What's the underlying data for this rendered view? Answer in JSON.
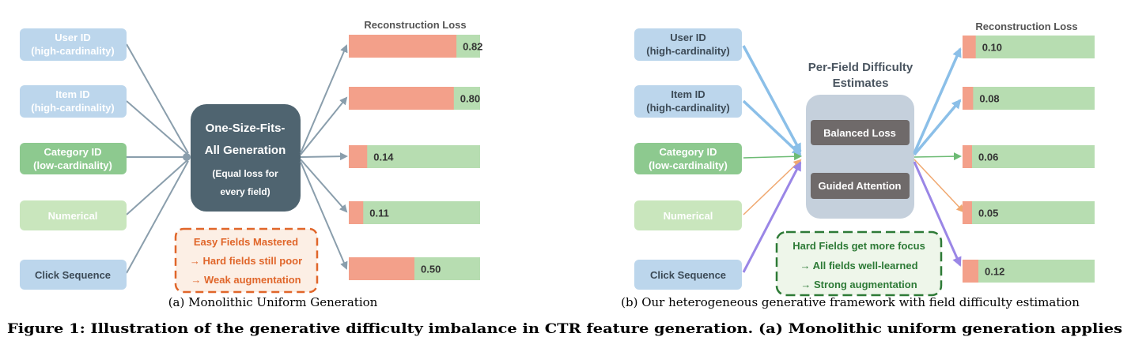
{
  "panel_a": {
    "inputs": [
      {
        "line1": "User ID",
        "line2": "(high-cardinality)"
      },
      {
        "line1": "Item ID",
        "line2": "(high-cardinality)"
      },
      {
        "line1": "Category ID",
        "line2": "(low-cardinality)"
      },
      {
        "line1": "Numerical",
        "line2": ""
      },
      {
        "line1": "Click Sequence",
        "line2": ""
      }
    ],
    "center_title_1": "One-Size-Fits-",
    "center_title_2": "All Generation",
    "center_sub_1": "(Equal loss for",
    "center_sub_2": "every field)",
    "loss_header": "Reconstruction Loss",
    "losses": [
      {
        "value": 0.82,
        "label": "0.82"
      },
      {
        "value": 0.8,
        "label": "0.80"
      },
      {
        "value": 0.14,
        "label": "0.14"
      },
      {
        "value": 0.11,
        "label": "0.11"
      },
      {
        "value": 0.5,
        "label": "0.50"
      }
    ],
    "note": [
      "Easy Fields Mastered",
      "→ Hard fields still poor",
      "→ Weak augmentation"
    ],
    "caption": "(a) Monolithic Uniform Generation"
  },
  "panel_b": {
    "inputs": [
      {
        "line1": "User ID",
        "line2": "(high-cardinality)"
      },
      {
        "line1": "Item ID",
        "line2": "(high-cardinality)"
      },
      {
        "line1": "Category ID",
        "line2": "(low-cardinality)"
      },
      {
        "line1": "Numerical",
        "line2": ""
      },
      {
        "line1": "Click Sequence",
        "line2": ""
      }
    ],
    "difficulty_title_1": "Per-Field Difficulty",
    "difficulty_title_2": "Estimates",
    "module_1": "Balanced Loss",
    "module_2": "Guided Attention",
    "loss_header": "Reconstruction Loss",
    "losses": [
      {
        "value": 0.1,
        "label": "0.10"
      },
      {
        "value": 0.08,
        "label": "0.08"
      },
      {
        "value": 0.06,
        "label": "0.06"
      },
      {
        "value": 0.05,
        "label": "0.05"
      },
      {
        "value": 0.12,
        "label": "0.12"
      }
    ],
    "note": [
      "Hard Fields get more focus",
      "→ All fields well-learned",
      "→ Strong augmentation"
    ],
    "caption": "(b) Our heterogeneous generative framework with field difficulty estimation"
  },
  "figure_caption": "Figure 1: Illustration of the generative difficulty imbalance in CTR feature generation. (a) Monolithic uniform generation applies",
  "colors": {
    "blue_box": "#bcd6ec",
    "green_box": "#8dc98f",
    "light_green_box": "#c9e6bd",
    "center_dark": "#4f6470",
    "loss_red": "#f3a08a",
    "loss_green": "#b7ddb1",
    "orange": "#e0662a",
    "dark_green": "#2d7a36",
    "grey_arrow": "#8a9eac",
    "blue_arrow": "#8bbfe8",
    "purple_arrow": "#9a86e6",
    "module_bg": "#6f6a6a",
    "difficulty_bg": "#c5d0dc"
  }
}
